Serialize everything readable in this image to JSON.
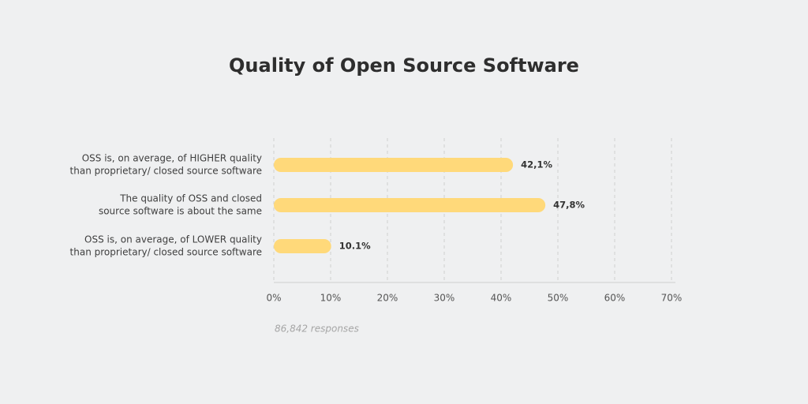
{
  "chart_data": {
    "type": "bar",
    "orientation": "horizontal",
    "title": "Quality of Open Source Software",
    "categories": [
      [
        "OSS is, on average, of HIGHER quality",
        "than proprietary/ closed source software"
      ],
      [
        "The quality of OSS and closed",
        "source software is about the same"
      ],
      [
        "OSS is, on average, of LOWER quality",
        "than proprietary/ closed source software"
      ]
    ],
    "values": [
      42.1,
      47.8,
      10.1
    ],
    "value_labels": [
      "42,1%",
      "47,8%",
      "10.1%"
    ],
    "color": "#ffd97a",
    "xlim": [
      0,
      70
    ],
    "xticks": [
      {
        "value": 0,
        "label": "0%"
      },
      {
        "value": 10,
        "label": "10%"
      },
      {
        "value": 20,
        "label": "20%"
      },
      {
        "value": 30,
        "label": "30%"
      },
      {
        "value": 40,
        "label": "40%"
      },
      {
        "value": 50,
        "label": "50%"
      },
      {
        "value": 60,
        "label": "60%"
      },
      {
        "value": 70,
        "label": "70%"
      }
    ],
    "grid": true,
    "note": "86,842 responses"
  }
}
